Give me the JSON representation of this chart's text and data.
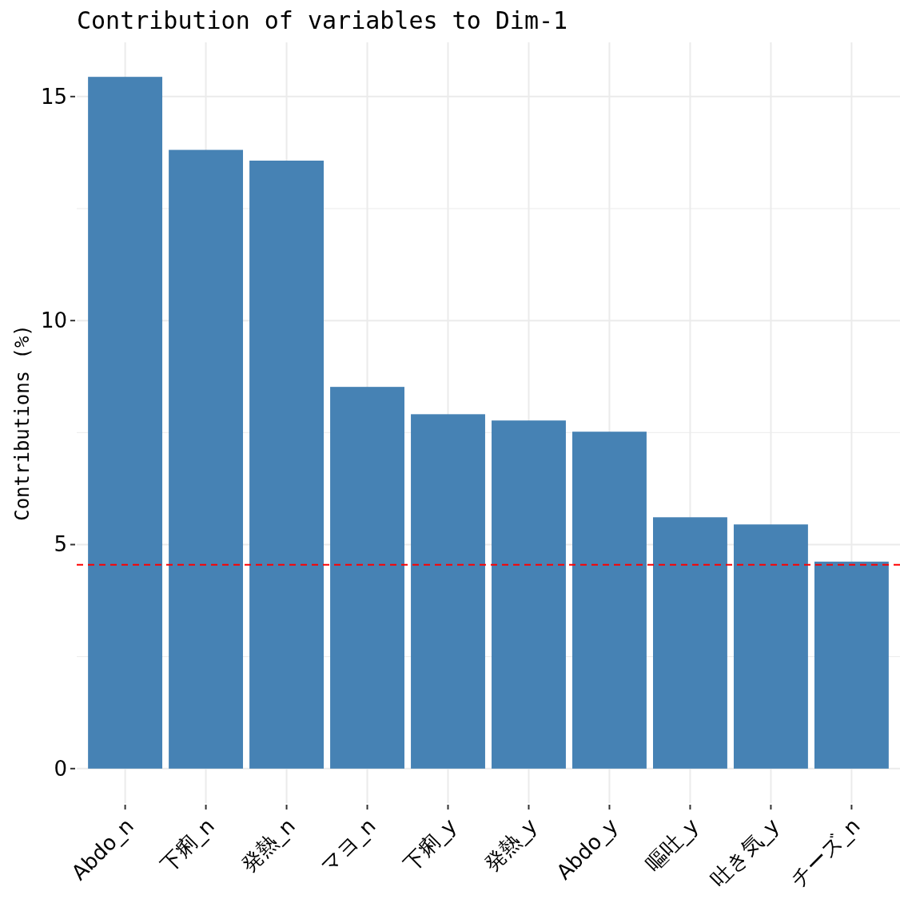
{
  "chart_data": {
    "type": "bar",
    "title": "Contribution of variables to Dim-1",
    "ylabel": "Contributions (%)",
    "categories": [
      "Abdo_n",
      "下痢_n",
      "発熱_n",
      "マヨ_n",
      "下痢_y",
      "発熱_y",
      "Abdo_y",
      "嘔吐_y",
      "吐き気_y",
      "チーズ_n"
    ],
    "values": [
      15.44,
      13.81,
      13.57,
      8.52,
      7.91,
      7.77,
      7.52,
      5.61,
      5.45,
      4.62
    ],
    "color": "#4682b4",
    "ylim": [
      -0.77,
      16.21
    ],
    "yticks": [
      0,
      5,
      10,
      15
    ],
    "grid": true,
    "ref_lines": [
      {
        "axis": "y",
        "value": 4.55,
        "color": "#ff0000",
        "line_style": "dashed"
      }
    ]
  }
}
